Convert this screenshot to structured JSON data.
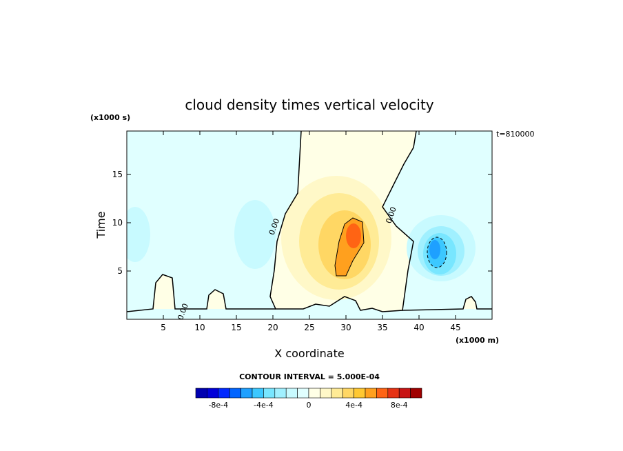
{
  "chart_data": {
    "type": "heatmap",
    "title": "cloud density times vertical velocity",
    "xlabel": "X coordinate",
    "ylabel": "Time",
    "x_unit_label": "(x1000 m)",
    "y_unit_label": "(x1000 s)",
    "time_stamp": "t=810000",
    "xlim": [
      0,
      50
    ],
    "ylim": [
      0,
      19.5
    ],
    "x_ticks": [
      5,
      10,
      15,
      20,
      25,
      30,
      35,
      40,
      45
    ],
    "y_ticks": [
      5,
      10,
      15
    ],
    "contour_interval_text": "CONTOUR INTERVAL = 5.000E-04",
    "contour_labels": [
      {
        "text": "0.00",
        "x": 20.5,
        "y": 9.5
      },
      {
        "text": "0.00",
        "x": 36.5,
        "y": 10.7
      },
      {
        "text": "0.00",
        "x": 8.0,
        "y": 0.7
      }
    ],
    "features": [
      {
        "name": "updraft core max",
        "x": 31,
        "y": 9,
        "value": 0.0006
      },
      {
        "name": "downdraft core min",
        "x": 42,
        "y": 7.5,
        "value": -0.0006
      },
      {
        "name": "weak negative region",
        "x": 18,
        "y": 9,
        "value": -0.0001
      }
    ],
    "colorbar": {
      "min": -0.001,
      "max": 0.001,
      "step": 0.0001,
      "tick_labels": [
        "-8e-4",
        "-4e-4",
        "0",
        "4e-4",
        "8e-4"
      ],
      "tick_values": [
        -0.0008,
        -0.0004,
        0,
        0.0004,
        0.0008
      ],
      "colors": [
        "#0000b0",
        "#0000d8",
        "#0028ff",
        "#0064ff",
        "#1ea0ff",
        "#3cc8ff",
        "#78e6ff",
        "#a0f0ff",
        "#c8faff",
        "#e0ffff",
        "#ffffe6",
        "#fff8c8",
        "#ffeb96",
        "#ffd764",
        "#ffc832",
        "#ffa01e",
        "#ff6414",
        "#e63214",
        "#c81414",
        "#a00000"
      ]
    }
  }
}
